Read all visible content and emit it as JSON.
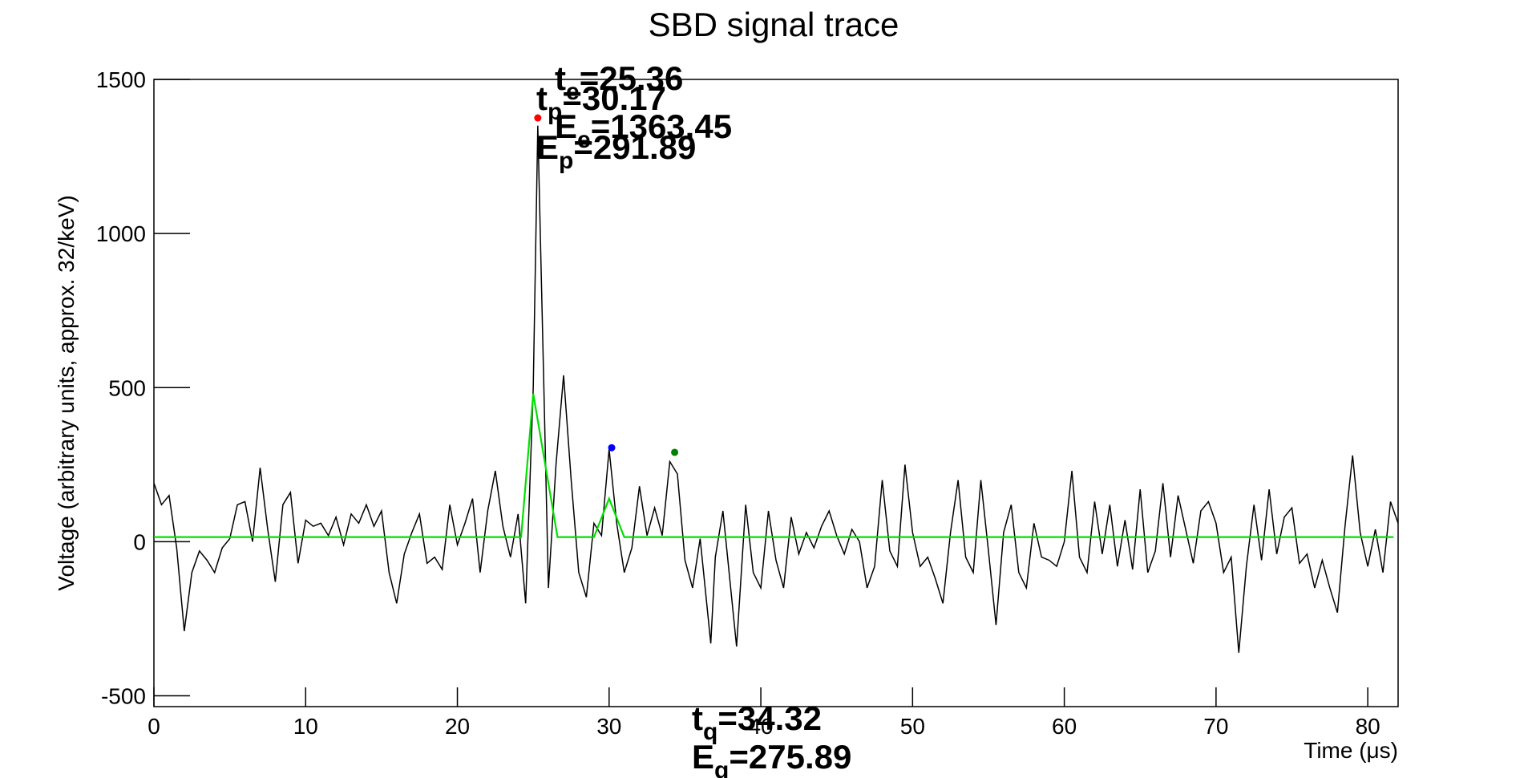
{
  "chart_data": {
    "type": "line",
    "title": "SBD signal trace",
    "x_label": "Time (μs)",
    "y_label": "Voltage (arbitrary units, approx. 32/keV)",
    "xlim": [
      0,
      82
    ],
    "xticks": [
      0,
      10,
      20,
      30,
      40,
      50,
      60,
      70,
      80
    ],
    "ylim": [
      -535,
      1500
    ],
    "yticks": [
      -500,
      0,
      500,
      1000,
      1500
    ],
    "series": [
      {
        "name": "trace",
        "color": "#000000",
        "x": [
          0,
          0.5,
          1,
          1.5,
          2,
          2.5,
          3,
          3.5,
          4,
          4.5,
          5,
          5.5,
          6,
          6.5,
          7,
          7.5,
          8,
          8.5,
          9,
          9.5,
          10,
          10.5,
          11,
          11.5,
          12,
          12.5,
          13,
          13.5,
          14,
          14.5,
          15,
          15.5,
          16,
          16.5,
          17,
          17.5,
          18,
          18.5,
          19,
          19.5,
          20,
          20.5,
          21,
          21.5,
          22,
          22.5,
          23,
          23.5,
          24,
          24.5,
          25,
          25.3,
          25.7,
          26,
          26.5,
          27,
          27.5,
          28,
          28.5,
          29,
          29.5,
          30,
          30.5,
          31,
          31.5,
          32,
          32.5,
          33,
          33.5,
          34,
          34.5,
          35,
          35.5,
          36,
          36.7,
          37,
          37.5,
          38.4,
          39,
          39.5,
          40,
          40.5,
          41,
          41.5,
          42,
          42.5,
          43,
          43.5,
          44,
          44.5,
          45,
          45.5,
          46,
          46.5,
          47,
          47.5,
          48,
          48.5,
          49,
          49.5,
          50,
          50.5,
          51,
          51.5,
          52,
          52.5,
          53,
          53.5,
          54,
          54.5,
          55,
          55.5,
          56,
          56.5,
          57,
          57.5,
          58,
          58.5,
          59,
          59.5,
          60,
          60.5,
          61,
          61.5,
          62,
          62.5,
          63,
          63.5,
          64,
          64.5,
          65,
          65.5,
          66,
          66.5,
          67,
          67.5,
          68,
          68.5,
          69,
          69.5,
          70,
          70.5,
          71,
          71.5,
          72,
          72.5,
          73,
          73.5,
          74,
          74.5,
          75,
          75.5,
          76,
          76.5,
          77,
          77.5,
          78,
          78.5,
          79,
          79.5,
          80,
          80.5,
          81,
          81.5,
          82
        ],
        "values": [
          190,
          120,
          150,
          -20,
          -290,
          -100,
          -30,
          -60,
          -100,
          -20,
          10,
          120,
          130,
          0,
          240,
          40,
          -130,
          120,
          160,
          -70,
          70,
          50,
          60,
          20,
          80,
          -10,
          90,
          60,
          120,
          50,
          100,
          -100,
          -200,
          -40,
          30,
          90,
          -70,
          -50,
          -90,
          120,
          -10,
          60,
          140,
          -100,
          100,
          230,
          50,
          -50,
          90,
          -200,
          500,
          1350,
          500,
          -150,
          250,
          540,
          200,
          -100,
          -180,
          60,
          20,
          300,
          60,
          -100,
          -20,
          180,
          20,
          110,
          20,
          260,
          220,
          -60,
          -150,
          10,
          -330,
          -50,
          100,
          -340,
          120,
          -100,
          -150,
          100,
          -60,
          -150,
          80,
          -40,
          30,
          -20,
          50,
          100,
          20,
          -40,
          40,
          0,
          -150,
          -80,
          200,
          -30,
          -80,
          250,
          30,
          -80,
          -50,
          -120,
          -200,
          30,
          200,
          -50,
          -100,
          200,
          -30,
          -270,
          30,
          120,
          -100,
          -150,
          60,
          -50,
          -60,
          -80,
          0,
          230,
          -50,
          -100,
          130,
          -40,
          120,
          -80,
          70,
          -90,
          170,
          -100,
          -30,
          190,
          -50,
          150,
          40,
          -70,
          100,
          130,
          60,
          -100,
          -50,
          -360,
          -80,
          120,
          -60,
          170,
          -40,
          80,
          110,
          -70,
          -40,
          -150,
          -60,
          -150,
          -230,
          50,
          280,
          30,
          -80,
          40,
          -100,
          130,
          60
        ]
      },
      {
        "name": "fit",
        "color": "#00e000",
        "x": [
          0,
          24.2,
          25.0,
          26.6,
          29.0,
          30.0,
          31.0,
          81.7
        ],
        "values": [
          15,
          15,
          480,
          15,
          15,
          140,
          15,
          15
        ]
      }
    ],
    "points": [
      {
        "x": 25.3,
        "value": 1375,
        "color": "#ff0000"
      },
      {
        "x": 30.17,
        "value": 305,
        "color": "#0000ff"
      },
      {
        "x": 34.32,
        "value": 290,
        "color": "#008000"
      }
    ],
    "annotations": [
      {
        "base": "t",
        "sub": "e",
        "text": "=25.36"
      },
      {
        "base": "t",
        "sub": "p",
        "text": "=30.17"
      },
      {
        "base": "E",
        "sub": "e",
        "text": "=1363.45"
      },
      {
        "base": "E",
        "sub": "p",
        "text": "=291.89"
      },
      {
        "base": "t",
        "sub": "q",
        "text": "=34.32"
      },
      {
        "base": "E",
        "sub": "q",
        "text": "=275.89"
      }
    ]
  }
}
